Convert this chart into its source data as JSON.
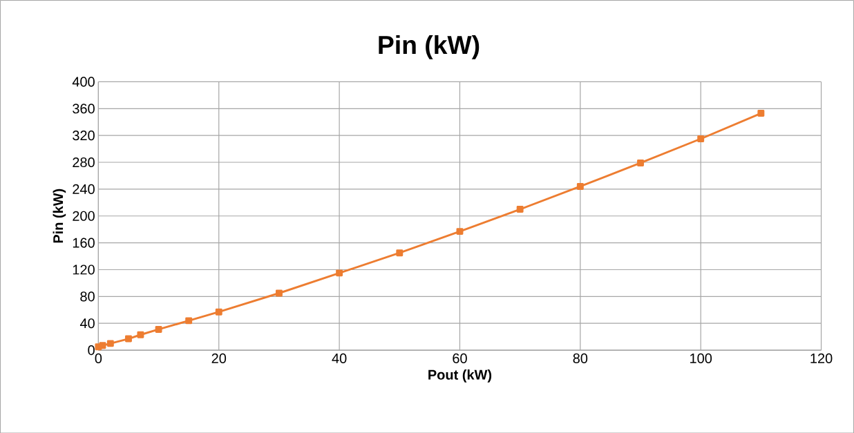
{
  "chart_data": {
    "type": "line",
    "title": "Pin (kW)",
    "xlabel": "Pout (kW)",
    "ylabel": "Pin (kW)",
    "x": [
      0,
      0.7,
      2,
      5,
      7,
      10,
      15,
      20,
      30,
      40,
      50,
      60,
      70,
      80,
      90,
      100,
      110
    ],
    "series": [
      {
        "color": "#ed7d31",
        "values": [
          5,
          7,
          10,
          17,
          23,
          31,
          44,
          57,
          85,
          115,
          145,
          177,
          210,
          244,
          279,
          315,
          353
        ]
      }
    ],
    "xlim": [
      0,
      120
    ],
    "xticks": [
      0,
      20,
      40,
      60,
      80,
      100,
      120
    ],
    "ylim": [
      0,
      400
    ],
    "yticks": [
      0,
      40,
      80,
      120,
      160,
      200,
      240,
      280,
      320,
      360,
      400
    ],
    "grid": true,
    "marker": "square",
    "line_style": "solid"
  }
}
